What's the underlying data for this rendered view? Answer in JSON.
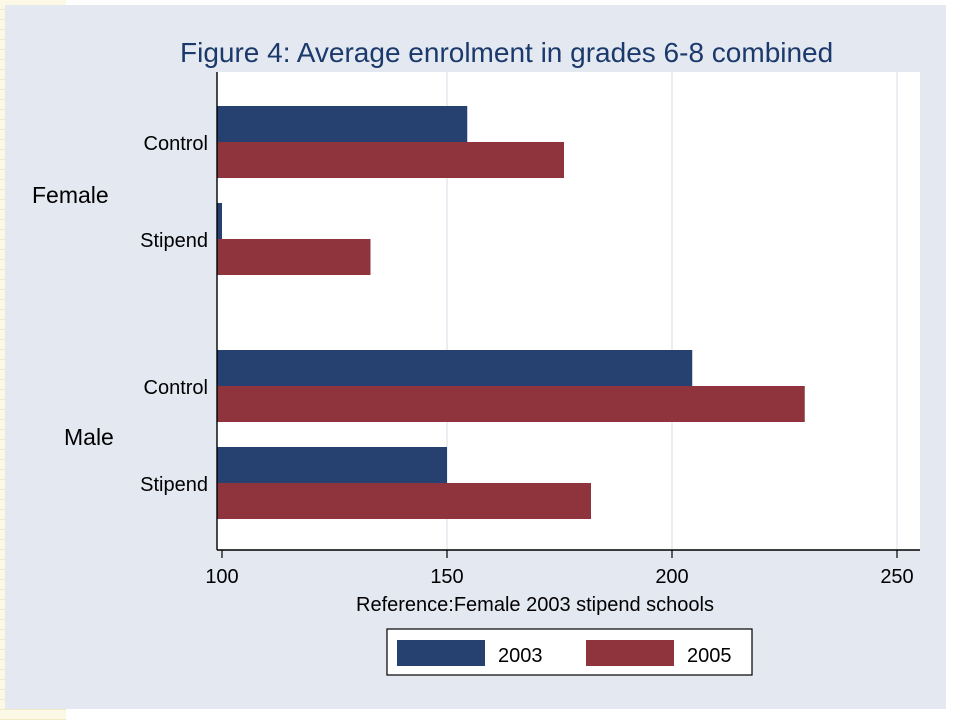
{
  "chart_data": {
    "type": "bar",
    "orientation": "horizontal",
    "title": "Figure 4: Average enrolment in grades 6-8 combined",
    "note": "Reference:Female 2003 stipend schools",
    "groups": [
      "Female",
      "Male"
    ],
    "subcategories": [
      "Control",
      "Stipend"
    ],
    "series": [
      {
        "name": "2003",
        "color": "#26416f",
        "values": [
          154.5,
          100,
          204.5,
          150
        ]
      },
      {
        "name": "2005",
        "color": "#8f343c",
        "values": [
          176,
          133,
          229.5,
          182
        ]
      }
    ],
    "xlim": [
      100,
      250
    ],
    "xticks": [
      "100",
      "150",
      "200",
      "250"
    ],
    "grid": true,
    "legend_position": "bottom"
  }
}
